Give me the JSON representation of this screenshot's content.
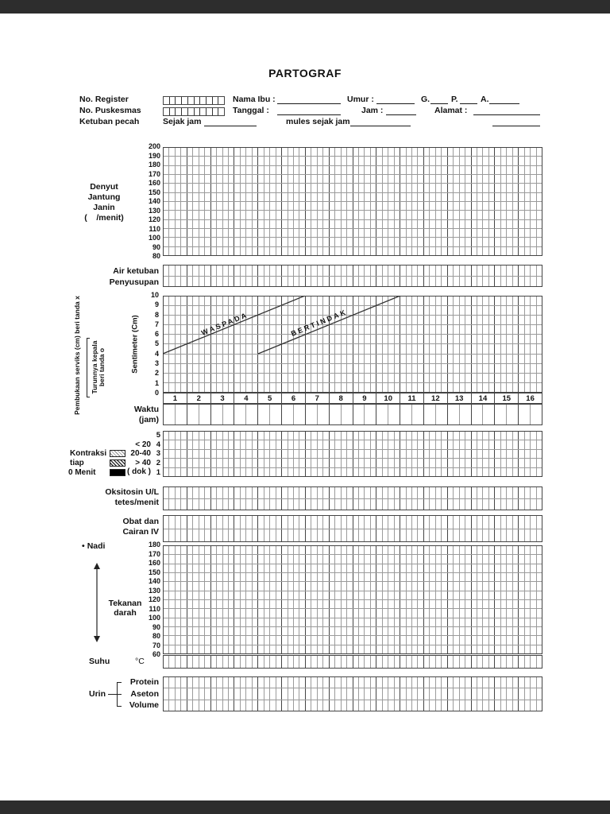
{
  "title": "PARTOGRAF",
  "header": {
    "no_register": "No. Register",
    "no_puskesmas": "No. Puskesmas",
    "ketuban_pecah": "Ketuban pecah",
    "nama_ibu": "Nama Ibu :",
    "umur": "Umur :",
    "g": "G.",
    "p": "P.",
    "a": "A.",
    "tanggal": "Tanggal :",
    "jam": "Jam :",
    "alamat": "Alamat :",
    "sejak_jam": "Sejak jam",
    "mules_sejak_jam": "mules sejak jam"
  },
  "fhr": {
    "label_lines": [
      "Denyut",
      "Jantung",
      "Janin",
      "(    /menit)"
    ],
    "ticks": [
      "200",
      "190",
      "180",
      "170",
      "160",
      "150",
      "140",
      "130",
      "120",
      "110",
      "100",
      "90",
      "80"
    ]
  },
  "amniotic": {
    "labels": [
      "Air ketuban",
      "Penyusupan"
    ]
  },
  "cervix": {
    "rotated_left": "Pembukaan serviks (cm) beri tanda x",
    "rotated_left2_lines": [
      "Turunnya kepala",
      "beri tanda o"
    ],
    "axis_label": "Sentimeter (Cm)",
    "ticks": [
      "10",
      "9",
      "8",
      "7",
      "6",
      "5",
      "4",
      "3",
      "2",
      "1",
      "0"
    ],
    "alert_line_label": "WASPADA",
    "action_line_label": "BERTINDAK",
    "hours": [
      "1",
      "2",
      "3",
      "4",
      "5",
      "6",
      "7",
      "8",
      "9",
      "10",
      "11",
      "12",
      "13",
      "14",
      "15",
      "16"
    ],
    "time_label_lines": [
      "Waktu",
      "(jam)"
    ]
  },
  "contractions": {
    "left_lines": [
      "Kontraksi",
      "tiap",
      "0 Menit"
    ],
    "legend": {
      "lt20": "< 20",
      "b2040": "20-40",
      "gt40": "> 40",
      "dok": "( dok )"
    },
    "row_numbers": [
      "5",
      "4",
      "3",
      "2",
      "1"
    ],
    "patterns": [
      "hatch-light",
      "hatch-dense",
      "solid-black"
    ]
  },
  "oxytocin": {
    "labels": [
      "Oksitosin U/L",
      "tetes/menit"
    ]
  },
  "drugs": {
    "labels": [
      "Obat dan",
      "Cairan IV"
    ]
  },
  "vitals": {
    "pulse_bullet": "•",
    "pulse_label": "Nadi",
    "bp_label_lines": [
      "Tekanan",
      "darah"
    ],
    "ticks": [
      "180",
      "170",
      "160",
      "150",
      "140",
      "130",
      "120",
      "110",
      "100",
      "90",
      "80",
      "70",
      "60"
    ]
  },
  "temperature": {
    "label": "Suhu",
    "unit": "°C"
  },
  "urine": {
    "label": "Urin",
    "items": [
      "Protein",
      "Aseton",
      "Volume"
    ]
  }
}
